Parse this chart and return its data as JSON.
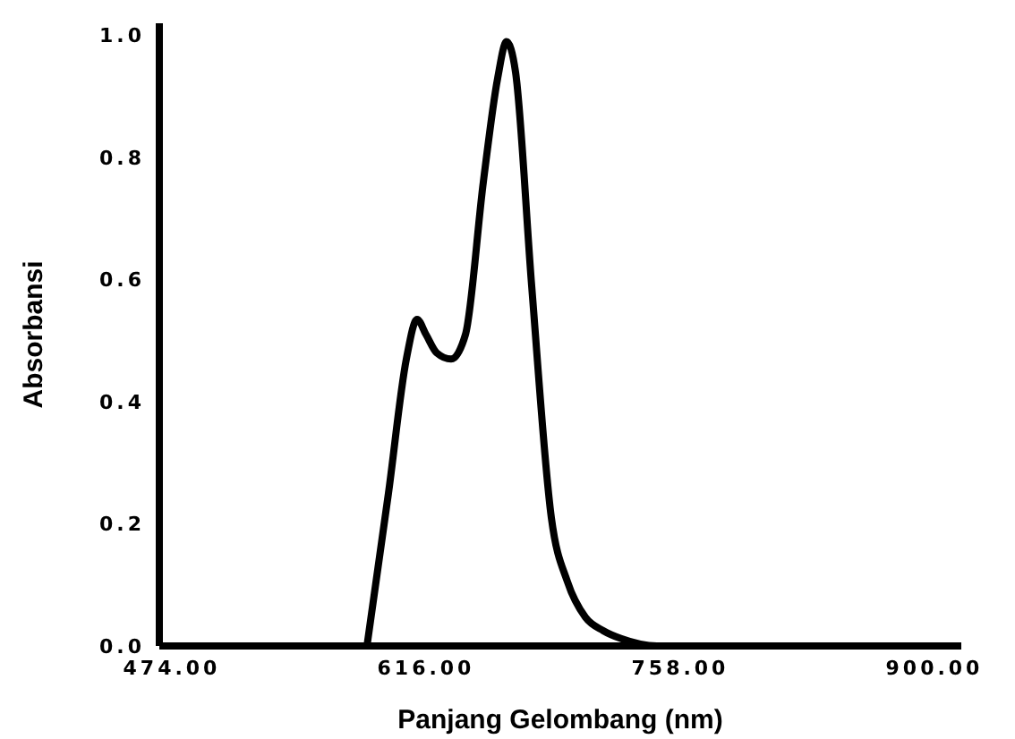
{
  "chart_data": {
    "type": "line",
    "xlabel": "Panjang Gelombang (nm)",
    "ylabel": "Absorbansi",
    "xlim": [
      467,
      915
    ],
    "ylim": [
      0,
      1.02
    ],
    "xticks": [
      {
        "value": 474,
        "label": "474.00"
      },
      {
        "value": 616,
        "label": "616.00"
      },
      {
        "value": 758,
        "label": "758.00"
      },
      {
        "value": 900,
        "label": "900.00"
      }
    ],
    "yticks": [
      {
        "value": 0,
        "label": "0.0"
      },
      {
        "value": 0.2,
        "label": "0.2"
      },
      {
        "value": 0.4,
        "label": "0.4"
      },
      {
        "value": 0.6,
        "label": "0.6"
      },
      {
        "value": 0.8,
        "label": "0.8"
      },
      {
        "value": 1,
        "label": "1.0"
      }
    ],
    "x": [
      583,
      595,
      605,
      611,
      616,
      622,
      630,
      638,
      648,
      656,
      661,
      666,
      675,
      686,
      695,
      705,
      715,
      725,
      745,
      800,
      900
    ],
    "series": [
      {
        "color": "#000000",
        "values": [
          0,
          0.25,
          0.47,
          0.535,
          0.51,
          0.48,
          0.47,
          0.51,
          0.76,
          0.93,
          0.99,
          0.94,
          0.59,
          0.21,
          0.105,
          0.047,
          0.025,
          0.012,
          0,
          0,
          0
        ]
      }
    ],
    "grid": false,
    "marker": "none",
    "line_style": "solid"
  }
}
